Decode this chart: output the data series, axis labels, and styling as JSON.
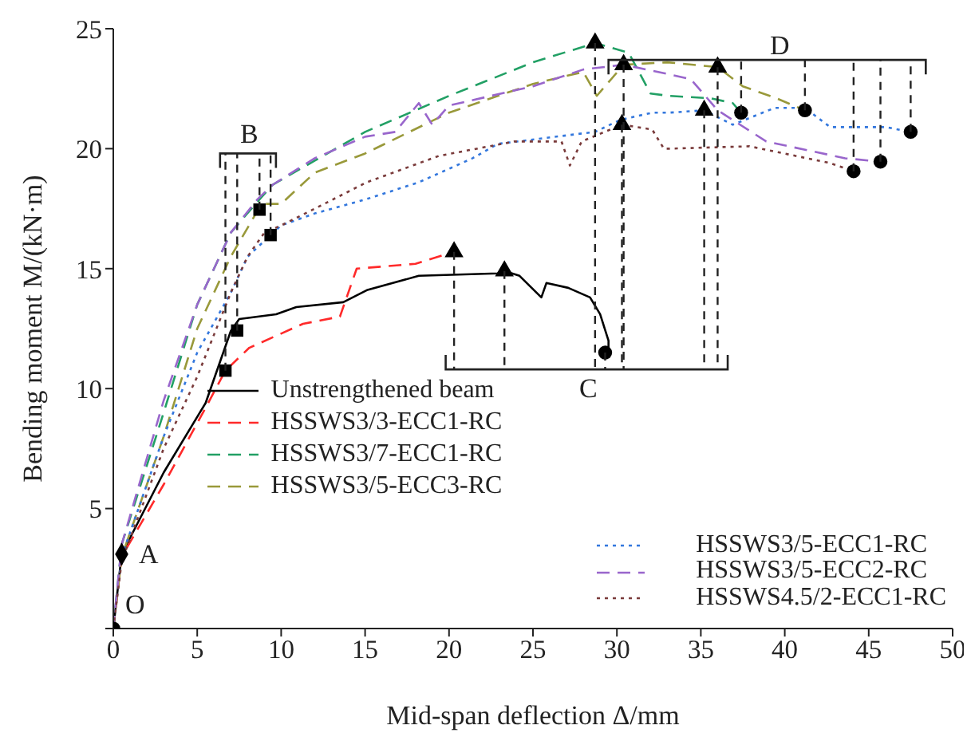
{
  "chart_data": {
    "type": "line",
    "xlabel": "Mid-span deflection Δ/mm",
    "ylabel": "Bending moment M/(kN·m)",
    "xlim": [
      0,
      50
    ],
    "ylim": [
      0,
      25
    ],
    "xticks": [
      0,
      5,
      10,
      15,
      20,
      25,
      30,
      35,
      40,
      45,
      50
    ],
    "yticks": [
      {
        "value": 0,
        "label": null
      },
      5,
      10,
      15,
      20,
      25
    ],
    "grid": false,
    "legend": "bottom",
    "series": [
      {
        "name": "Unstrengthened beam",
        "color": "#000000",
        "line_style": "solid",
        "x": [
          0,
          0.5,
          3,
          5.5,
          7,
          7.5,
          9.7,
          10.9,
          13.7,
          15.1,
          18.2,
          22.9,
          23.3,
          24.2,
          25.5,
          25.8,
          27.1,
          28.4,
          29,
          29.5,
          29.5
        ],
        "values": [
          0,
          3.1,
          6.5,
          9.4,
          12.4,
          12.9,
          13.1,
          13.4,
          13.6,
          14.1,
          14.7,
          14.8,
          14.9,
          14.7,
          13.8,
          14.4,
          14.2,
          13.8,
          13.1,
          12,
          11.5
        ]
      },
      {
        "name": "HSSWS3/3-ECC1-RC",
        "color": "#ff2a2a",
        "line_style": "dashed",
        "x": [
          0,
          0.5,
          3,
          5.5,
          6.68,
          8.1,
          11.3,
          13.5,
          14.5,
          18,
          20.3
        ],
        "values": [
          0,
          3,
          6,
          9.2,
          10.75,
          11.7,
          12.7,
          13,
          15,
          15.2,
          15.7
        ]
      },
      {
        "name": "HSSWS3/7-ECC1-RC",
        "color": "#22a065",
        "line_style": "dashed",
        "x": [
          0,
          0.5,
          3,
          5,
          7,
          8.6,
          9.5,
          12,
          15,
          20,
          25,
          28.7,
          30.7,
          32,
          33.1,
          35.6,
          36.9,
          37.4
        ],
        "values": [
          0,
          3.5,
          9,
          13.5,
          16.5,
          17.8,
          18.5,
          19.5,
          20.7,
          22.2,
          23.6,
          24.4,
          24,
          22.3,
          22.2,
          22.1,
          21.9,
          21.5
        ]
      },
      {
        "name": "HSSWS3/5-ECC3-RC",
        "color": "#99993a",
        "line_style": "dashed",
        "x": [
          0,
          0.5,
          3,
          5,
          7,
          8.5,
          9,
          10,
          12,
          15,
          20,
          25,
          28,
          28.8,
          30.4,
          33,
          36,
          37.5,
          39.5,
          41.2
        ],
        "values": [
          0,
          3,
          8,
          12.5,
          15.5,
          17.3,
          17.7,
          17.7,
          19,
          19.8,
          21.5,
          22.7,
          23.2,
          22.2,
          23.5,
          23.6,
          23.4,
          22.6,
          22.1,
          21.6
        ]
      },
      {
        "name": "HSSWS3/5-ECC1-RC",
        "color": "#3377dd",
        "line_style": "dotted",
        "x": [
          0,
          0.5,
          3,
          5,
          7,
          8,
          9.37,
          10,
          12,
          15.1,
          18.2,
          21.4,
          22.9,
          28.7,
          30.2,
          32.1,
          33.1,
          35.2,
          36.9,
          39.4,
          41.2,
          42.7,
          46,
          47.5
        ],
        "values": [
          0,
          3,
          8,
          11.5,
          14,
          15.5,
          16.4,
          16.8,
          17.3,
          17.9,
          18.6,
          19.6,
          20.2,
          20.7,
          21.2,
          21.5,
          21.5,
          21.6,
          21,
          21.7,
          21.7,
          20.9,
          20.9,
          20.7
        ]
      },
      {
        "name": "HSSWS3/5-ECC2-RC",
        "color": "#9966cc",
        "line_style": "dashed",
        "x": [
          0,
          0.5,
          3,
          5,
          7,
          8.6,
          9.5,
          12,
          15,
          16.8,
          18.2,
          19,
          20,
          25,
          28,
          30.4,
          33.1,
          34.4,
          36,
          38.9,
          43.6,
          45.7
        ],
        "values": [
          0,
          3.5,
          9.5,
          13.5,
          16.5,
          17.9,
          18.5,
          19.6,
          20.5,
          20.7,
          21.9,
          21,
          21.8,
          22.6,
          23.3,
          23.5,
          23.1,
          22.9,
          21.6,
          20.3,
          19.6,
          19.46
        ]
      },
      {
        "name": "HSSWS4.5/2-ECC1-RC",
        "color": "#7a3b3b",
        "line_style": "dotted",
        "x": [
          0,
          0.5,
          3,
          5,
          7,
          8,
          9,
          10,
          12,
          15.1,
          19.4,
          23.9,
          26.7,
          27.2,
          27.9,
          30.3,
          32.1,
          32.8,
          33.1,
          37.9,
          42.7,
          44.1
        ],
        "values": [
          0,
          2.8,
          7.5,
          10.5,
          14,
          15.5,
          16.5,
          16.8,
          17.5,
          18.6,
          19.7,
          20.3,
          20.3,
          19.3,
          20.3,
          21,
          20.8,
          20,
          20,
          20.1,
          19.4,
          19.06
        ]
      },
      {
        "type": "scatter",
        "marker": "diamond",
        "color": "#000000",
        "x": [
          0.5
        ],
        "values": [
          3.1
        ]
      },
      {
        "type": "scatter",
        "marker": "circle",
        "color": "#000000",
        "x": [
          0
        ],
        "values": [
          0
        ]
      },
      {
        "type": "scatter",
        "marker": "square",
        "color": "#000000",
        "x": [
          6.68,
          7.38,
          8.71,
          9.37
        ],
        "values": [
          10.75,
          12.42,
          17.46,
          16.4
        ]
      },
      {
        "type": "scatter",
        "marker": "triangle",
        "color": "#000000",
        "x": [
          20.3,
          23.3,
          28.7,
          30.4,
          30.3,
          35.2,
          36
        ],
        "values": [
          15.7,
          14.9,
          24.4,
          23.5,
          21,
          21.6,
          23.4
        ]
      },
      {
        "type": "scatter",
        "marker": "circle",
        "color": "#000000",
        "x": [
          29.3,
          37.4,
          41.2,
          44.1,
          45.7,
          47.5
        ],
        "values": [
          11.5,
          21.5,
          21.6,
          19.06,
          19.46,
          20.7
        ]
      }
    ],
    "annotations": [
      {
        "text": "A",
        "x": 0.5,
        "y": 3.1
      },
      {
        "text": "O",
        "x": 0,
        "y": 0
      },
      {
        "text": "B",
        "x": 8.71,
        "y": 17.46
      },
      {
        "text": "C",
        "x": 29.3,
        "y": 11.5
      },
      {
        "text": "D",
        "x": 41.2,
        "y": 21.6
      }
    ]
  }
}
